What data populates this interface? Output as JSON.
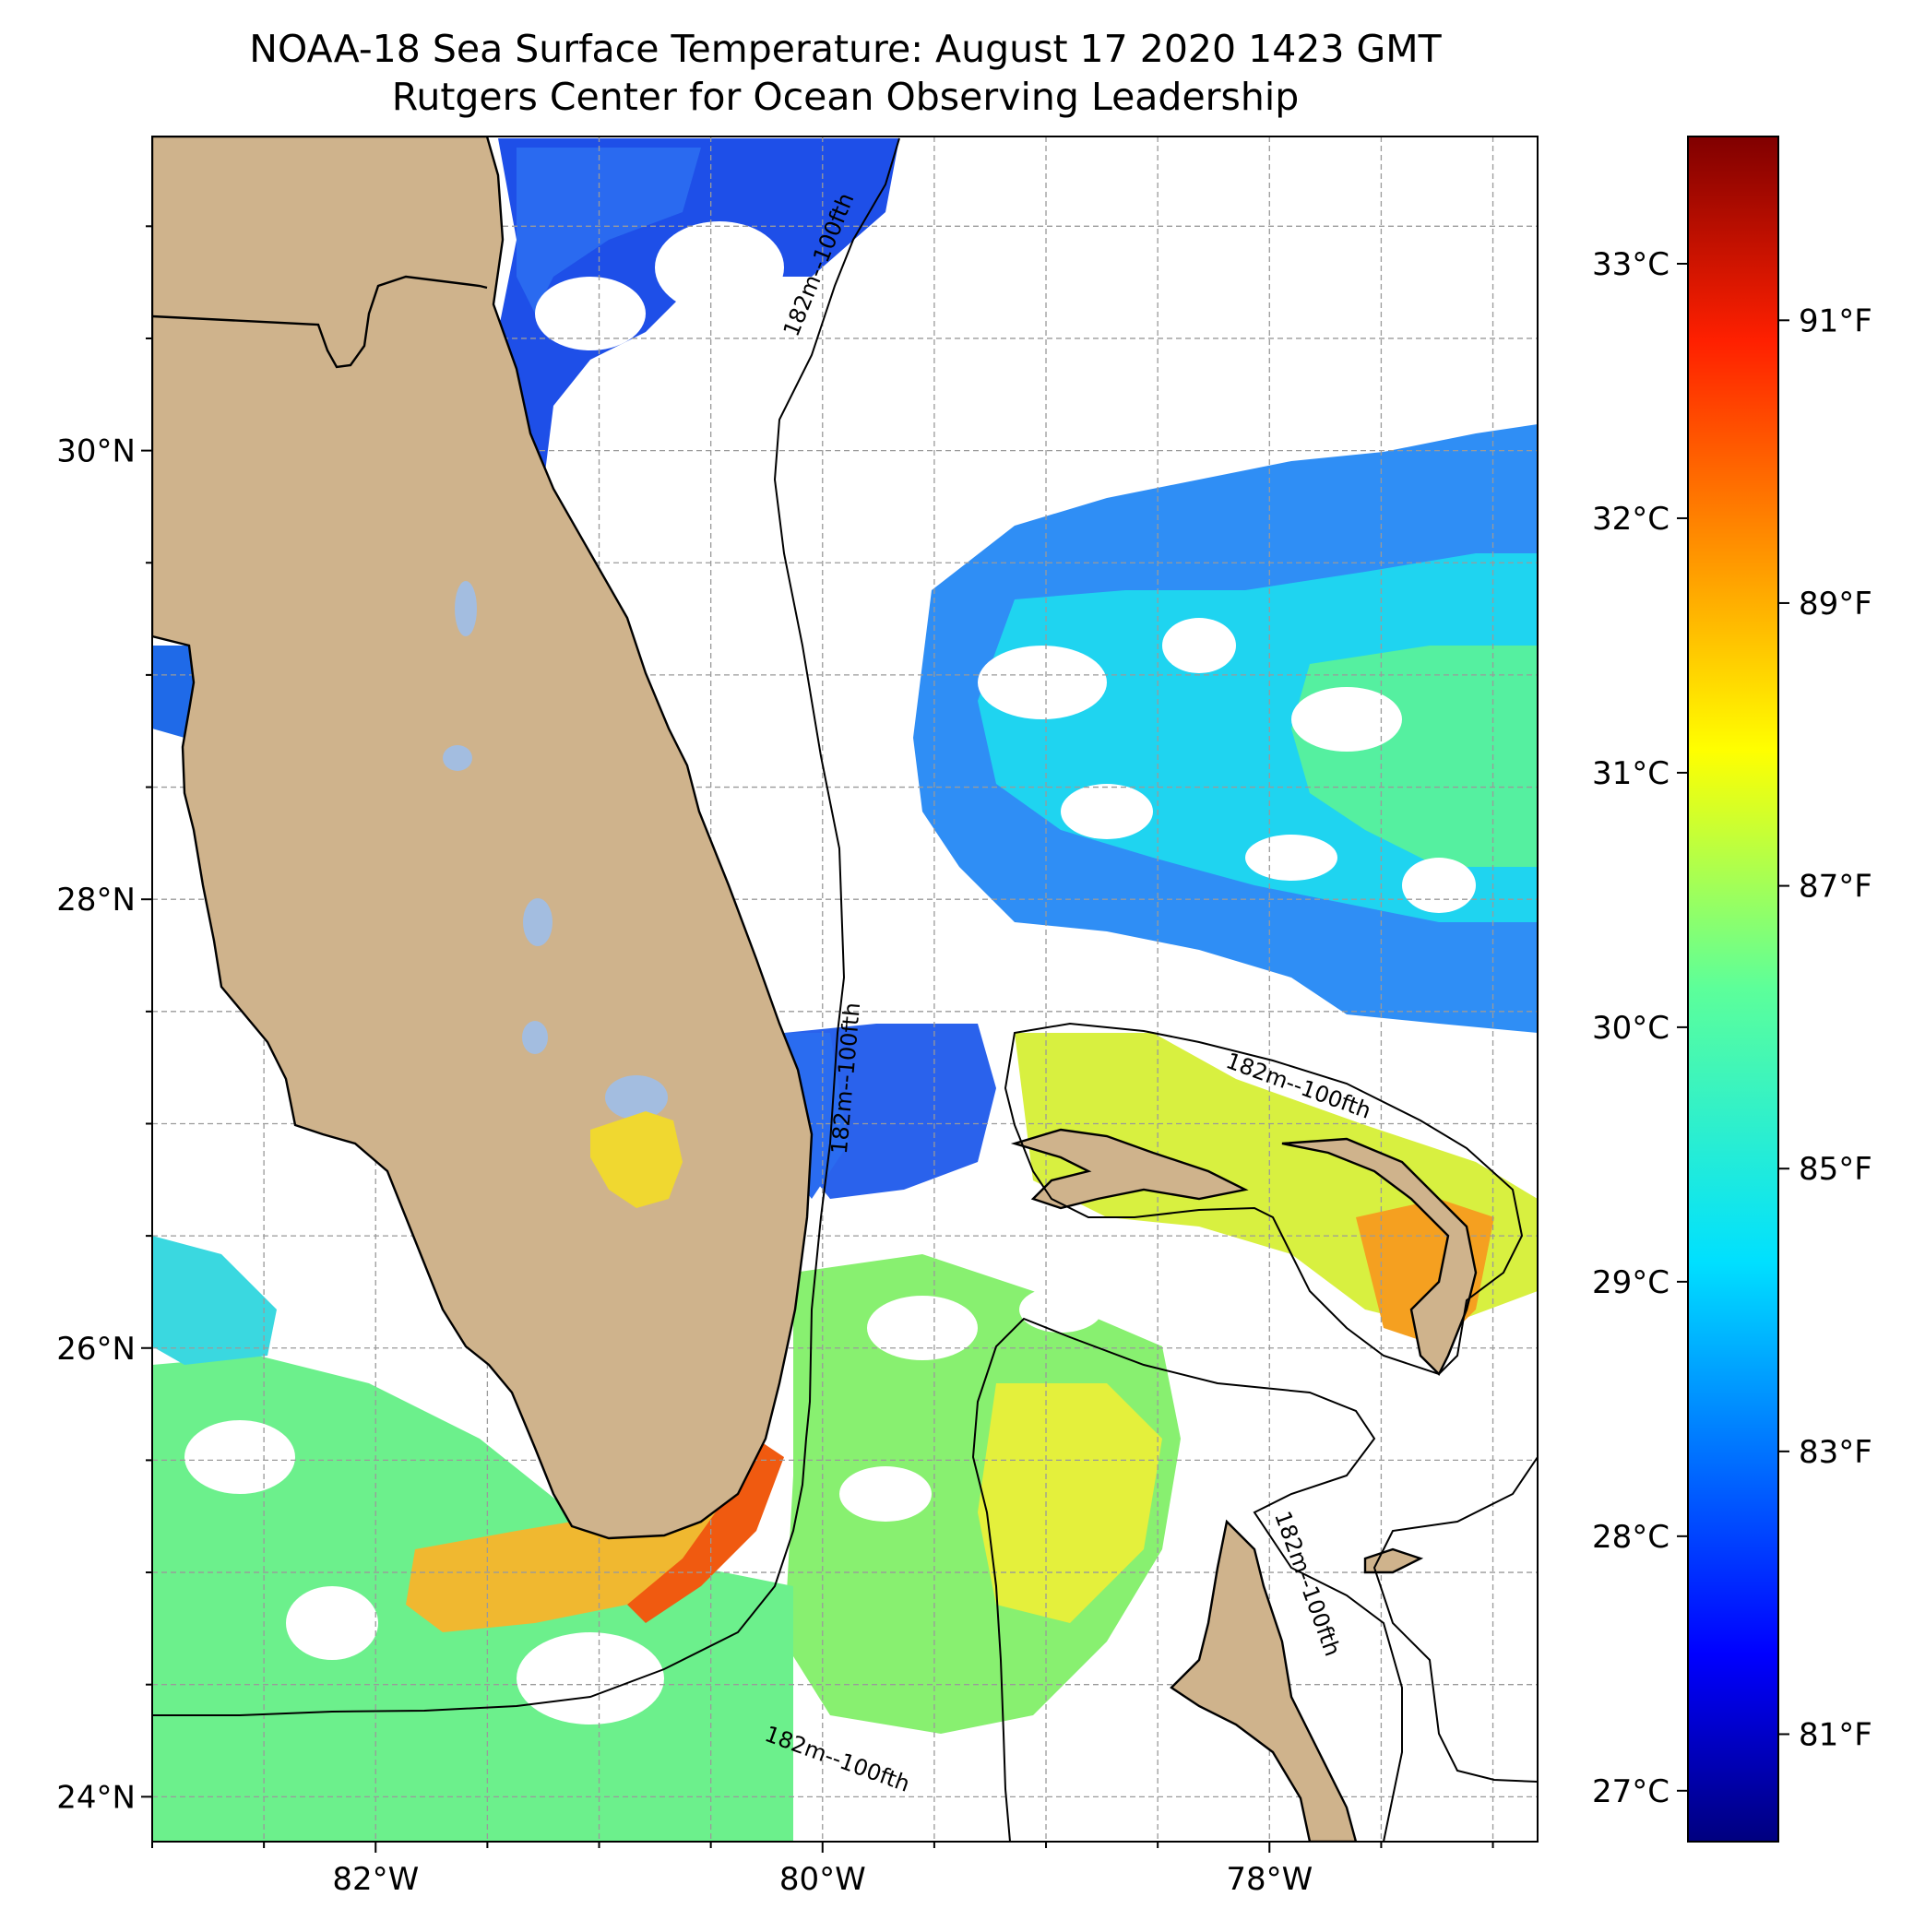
{
  "title": {
    "line1": "NOAA-18 Sea Surface Temperature: August 17 2020 1423 GMT",
    "line2": "Rutgers Center for Ocean Observing Leadership"
  },
  "map": {
    "lon_range": [
      -83.0,
      -76.8
    ],
    "lat_range": [
      23.8,
      31.4
    ],
    "lon_ticks": [
      {
        "value": -82,
        "label": "82°W"
      },
      {
        "value": -80,
        "label": "80°W"
      },
      {
        "value": -78,
        "label": "78°W"
      }
    ],
    "lat_ticks": [
      {
        "value": 30,
        "label": "30°N"
      },
      {
        "value": 28,
        "label": "28°N"
      },
      {
        "value": 26,
        "label": "26°N"
      },
      {
        "value": 24,
        "label": "24°N"
      }
    ],
    "gridlines": true,
    "land_color": "#cfb38c",
    "lake_color": "#a3bde0",
    "contour_label": "182m--100fth",
    "contour_label_count": 5
  },
  "colorbar": {
    "colormap": "jet",
    "range_c": [
      26.8,
      33.5
    ],
    "celsius_ticks": [
      {
        "value": 27,
        "label": "27°C"
      },
      {
        "value": 28,
        "label": "28°C"
      },
      {
        "value": 29,
        "label": "29°C"
      },
      {
        "value": 30,
        "label": "30°C"
      },
      {
        "value": 31,
        "label": "31°C"
      },
      {
        "value": 32,
        "label": "32°C"
      },
      {
        "value": 33,
        "label": "33°C"
      }
    ],
    "fahrenheit_ticks": [
      {
        "value": 81,
        "label": "81°F"
      },
      {
        "value": 83,
        "label": "83°F"
      },
      {
        "value": 85,
        "label": "85°F"
      },
      {
        "value": 87,
        "label": "87°F"
      },
      {
        "value": 89,
        "label": "89°F"
      },
      {
        "value": 91,
        "label": "91°F"
      }
    ]
  }
}
